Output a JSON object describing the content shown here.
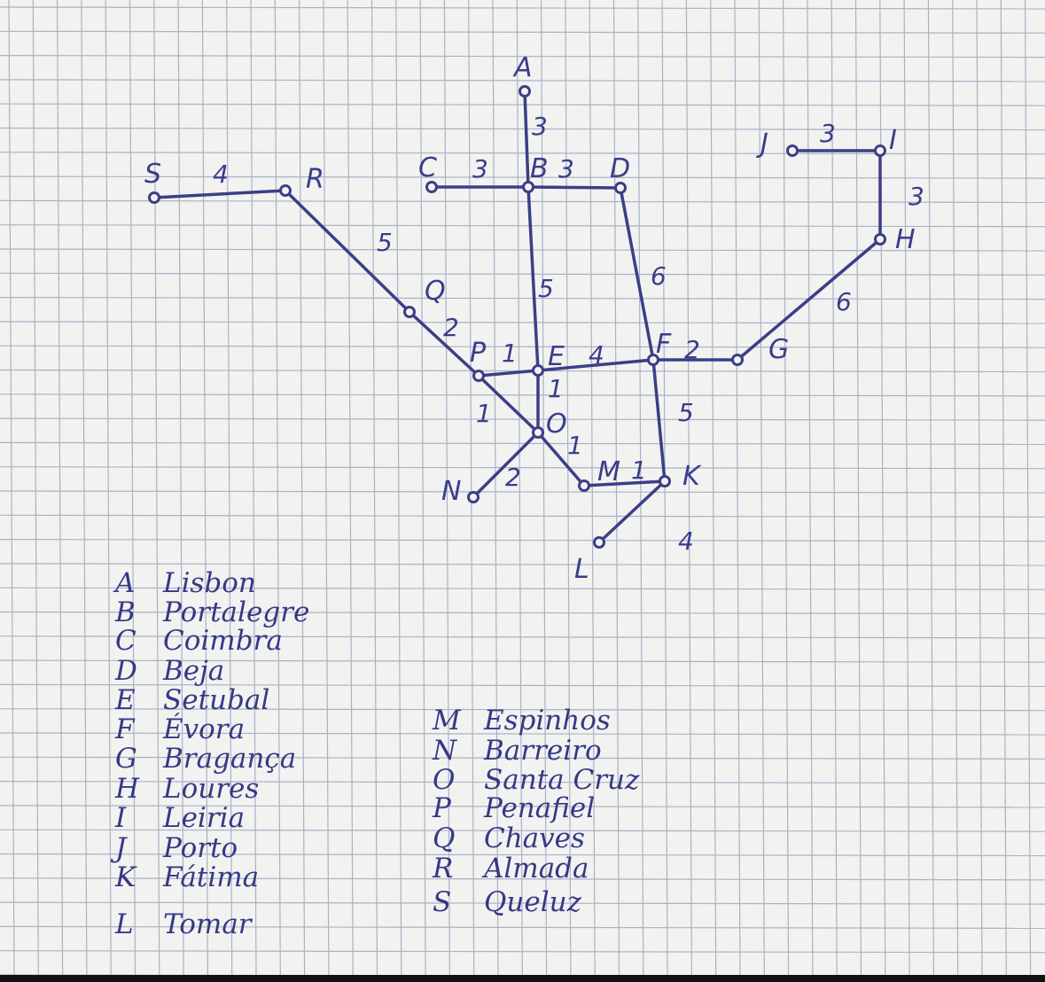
{
  "colors": {
    "paper": "#f2f2f1",
    "grid": "#a9b2c6",
    "ink": "#3b3f86"
  },
  "nodes": [
    {
      "id": "A",
      "label": "A"
    },
    {
      "id": "B",
      "label": "B"
    },
    {
      "id": "C",
      "label": "C"
    },
    {
      "id": "D",
      "label": "D"
    },
    {
      "id": "E",
      "label": "E"
    },
    {
      "id": "F",
      "label": "F"
    },
    {
      "id": "G",
      "label": "G"
    },
    {
      "id": "H",
      "label": "H"
    },
    {
      "id": "I",
      "label": "I"
    },
    {
      "id": "J",
      "label": "J"
    },
    {
      "id": "K",
      "label": "K"
    },
    {
      "id": "L",
      "label": "L"
    },
    {
      "id": "M",
      "label": "M"
    },
    {
      "id": "N",
      "label": "N"
    },
    {
      "id": "O",
      "label": "O"
    },
    {
      "id": "P",
      "label": "P"
    },
    {
      "id": "Q",
      "label": "Q"
    },
    {
      "id": "R",
      "label": "R"
    },
    {
      "id": "S",
      "label": "S"
    }
  ],
  "edges": [
    {
      "from": "S",
      "to": "R",
      "weight": "4"
    },
    {
      "from": "R",
      "to": "Q",
      "weight": "5"
    },
    {
      "from": "Q",
      "to": "P",
      "weight": "2"
    },
    {
      "from": "C",
      "to": "B",
      "weight": "3"
    },
    {
      "from": "B",
      "to": "D",
      "weight": "3"
    },
    {
      "from": "A",
      "to": "B",
      "weight": "3"
    },
    {
      "from": "B",
      "to": "E",
      "weight": "5"
    },
    {
      "from": "D",
      "to": "F",
      "weight": "6"
    },
    {
      "from": "P",
      "to": "E",
      "weight": "1"
    },
    {
      "from": "E",
      "to": "F",
      "weight": "4"
    },
    {
      "from": "F",
      "to": "G",
      "weight": "2"
    },
    {
      "from": "G",
      "to": "H",
      "weight": "6"
    },
    {
      "from": "H",
      "to": "I",
      "weight": "3"
    },
    {
      "from": "J",
      "to": "I",
      "weight": "3"
    },
    {
      "from": "E",
      "to": "O",
      "weight": "1"
    },
    {
      "from": "P",
      "to": "O",
      "weight": "1"
    },
    {
      "from": "O",
      "to": "N",
      "weight": "2"
    },
    {
      "from": "O",
      "to": "M",
      "weight": "1"
    },
    {
      "from": "M",
      "to": "K",
      "weight": "1"
    },
    {
      "from": "F",
      "to": "K",
      "weight": "5"
    },
    {
      "from": "K",
      "to": "L",
      "weight": "4"
    }
  ],
  "legend_left": [
    {
      "letter": "A",
      "name": "Lisbon"
    },
    {
      "letter": "B",
      "name": "Portalegre"
    },
    {
      "letter": "C",
      "name": "Coimbra"
    },
    {
      "letter": "D",
      "name": "Beja"
    },
    {
      "letter": "E",
      "name": "Setubal"
    },
    {
      "letter": "F",
      "name": "Évora"
    },
    {
      "letter": "G",
      "name": "Bragança"
    },
    {
      "letter": "H",
      "name": "Loures"
    },
    {
      "letter": "I",
      "name": "Leiria"
    },
    {
      "letter": "J",
      "name": "Porto"
    },
    {
      "letter": "K",
      "name": "Fátima"
    },
    {
      "letter": "L",
      "name": "Tomar"
    }
  ],
  "legend_right": [
    {
      "letter": "M",
      "name": "Espinhos"
    },
    {
      "letter": "N",
      "name": "Barreiro"
    },
    {
      "letter": "O",
      "name": "Santa Cruz"
    },
    {
      "letter": "P",
      "name": "Penafiel"
    },
    {
      "letter": "Q",
      "name": "Chaves"
    },
    {
      "letter": "R",
      "name": "Almada"
    },
    {
      "letter": "S",
      "name": "Queluz"
    }
  ]
}
